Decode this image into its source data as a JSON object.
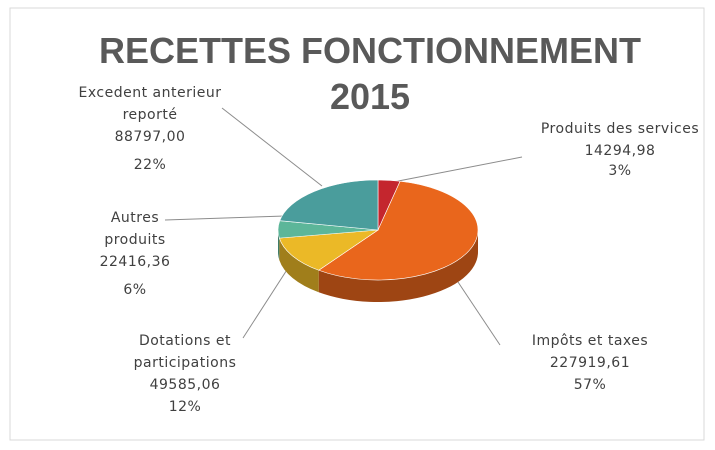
{
  "chart_data": {
    "type": "pie",
    "title": "RECETTES FONCTIONNEMENT 2015",
    "categories": [
      "Produits des services",
      "Impôts et taxes",
      "Dotations et participations",
      "Autres produits",
      "Excedent anterieur reporté"
    ],
    "values": [
      14294.98,
      227919.61,
      49585.06,
      22416.36,
      88797.0
    ],
    "value_labels": [
      "14294,98",
      "227919,61",
      "49585,06",
      "22416,36",
      "88797,00"
    ],
    "percent_labels": [
      "3%",
      "57%",
      "12%",
      "6%",
      "22%"
    ],
    "colors": [
      "#c4262e",
      "#e9661c",
      "#ebb927",
      "#5cb699",
      "#4a9d9c"
    ]
  }
}
